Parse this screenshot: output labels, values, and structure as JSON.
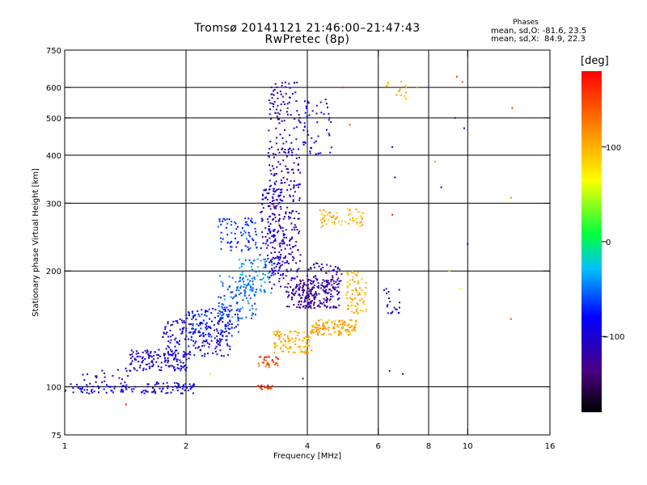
{
  "chart_data": {
    "type": "scatter",
    "title": "Tromsø 20141121 21:46:00–21:47:43",
    "subtitle": "RwPretec (8p)",
    "xlabel": "Frequency [MHz]",
    "ylabel": "Stationary phase Virtual Height [km]",
    "x_scale": "log",
    "y_scale": "log",
    "xlim": [
      1,
      16
    ],
    "ylim": [
      75,
      750
    ],
    "x_ticks": [
      1,
      2,
      4,
      6,
      8,
      10,
      16
    ],
    "y_ticks": [
      75,
      100,
      200,
      300,
      400,
      500,
      600,
      750
    ],
    "x_gridlines": [
      2,
      4,
      6,
      8,
      10
    ],
    "y_gridlines": [
      100,
      200,
      300,
      400,
      500,
      600
    ],
    "grid": true,
    "phases": {
      "title": "Phases",
      "o_line": "mean, sd,O: -81.6, 23.5",
      "x_line": "mean, sd,X:  84.9, 22.3"
    },
    "colorbar": {
      "label": "[deg]",
      "ticks": [
        -100,
        0,
        100
      ],
      "range": [
        -180,
        180
      ],
      "colormap": "rainbow (black → purple → blue → cyan → green → yellow → orange → red)"
    },
    "clusters": [
      {
        "f": [
          1.0,
          1.5
        ],
        "h": [
          96,
          102
        ],
        "phase": -95,
        "n": 60
      },
      {
        "f": [
          1.55,
          2.1
        ],
        "h": [
          96,
          103
        ],
        "phase": -95,
        "n": 70
      },
      {
        "f": [
          1.1,
          1.45
        ],
        "h": [
          102,
          112
        ],
        "phase": -100,
        "n": 20
      },
      {
        "f": [
          1.45,
          2.05
        ],
        "h": [
          110,
          125
        ],
        "phase": -100,
        "n": 140
      },
      {
        "f": [
          1.75,
          2.6
        ],
        "h": [
          120,
          150
        ],
        "phase": -95,
        "n": 160
      },
      {
        "f": [
          2.0,
          2.7
        ],
        "h": [
          135,
          160
        ],
        "phase": -75,
        "n": 110
      },
      {
        "f": [
          2.4,
          3.0
        ],
        "h": [
          150,
          195
        ],
        "phase": -55,
        "n": 110
      },
      {
        "f": [
          2.7,
          3.3
        ],
        "h": [
          175,
          215
        ],
        "phase": -45,
        "n": 70
      },
      {
        "f": [
          2.4,
          3.0
        ],
        "h": [
          225,
          275
        ],
        "phase": -70,
        "n": 80
      },
      {
        "f": [
          3.05,
          3.45
        ],
        "h": [
          195,
          330
        ],
        "phase": -100,
        "n": 110
      },
      {
        "f": [
          3.2,
          3.85
        ],
        "h": [
          170,
          620
        ],
        "phase": -110,
        "n": 350
      },
      {
        "f": [
          3.8,
          4.8
        ],
        "h": [
          160,
          190
        ],
        "phase": -120,
        "n": 150
      },
      {
        "f": [
          4.0,
          4.9
        ],
        "h": [
          180,
          210
        ],
        "phase": -115,
        "n": 60
      },
      {
        "f": [
          3.55,
          4.2
        ],
        "h": [
          160,
          185
        ],
        "phase": -140,
        "n": 50
      },
      {
        "f": [
          3.3,
          4.1
        ],
        "h": [
          122,
          140
        ],
        "phase": 100,
        "n": 100
      },
      {
        "f": [
          4.1,
          5.3
        ],
        "h": [
          136,
          150
        ],
        "phase": 105,
        "n": 120
      },
      {
        "f": [
          4.3,
          5.5
        ],
        "h": [
          260,
          290
        ],
        "phase": 100,
        "n": 60
      },
      {
        "f": [
          5.0,
          5.6
        ],
        "h": [
          155,
          200
        ],
        "phase": 100,
        "n": 80
      },
      {
        "f": [
          3.0,
          3.4
        ],
        "h": [
          112,
          120
        ],
        "phase": 150,
        "n": 30
      },
      {
        "f": [
          3.0,
          3.3
        ],
        "h": [
          98,
          101
        ],
        "phase": 150,
        "n": 20
      },
      {
        "f": [
          3.9,
          4.6
        ],
        "h": [
          400,
          560
        ],
        "phase": -100,
        "n": 50
      },
      {
        "f": [
          6.2,
          6.8
        ],
        "h": [
          155,
          180
        ],
        "phase": -110,
        "n": 20
      },
      {
        "f": [
          6.1,
          7.1
        ],
        "h": [
          560,
          650
        ],
        "phase": 110,
        "n": 15
      }
    ],
    "scattered_points": [
      {
        "f": 6.5,
        "h": 420,
        "phase": -100
      },
      {
        "f": 6.6,
        "h": 350,
        "phase": -90
      },
      {
        "f": 6.5,
        "h": 280,
        "phase": 170
      },
      {
        "f": 6.4,
        "h": 110,
        "phase": -120
      },
      {
        "f": 6.9,
        "h": 108,
        "phase": -110
      },
      {
        "f": 4.9,
        "h": 600,
        "phase": 160
      },
      {
        "f": 5.1,
        "h": 480,
        "phase": 150
      },
      {
        "f": 7.5,
        "h": 600,
        "phase": 110
      },
      {
        "f": 8.3,
        "h": 385,
        "phase": 110
      },
      {
        "f": 8.6,
        "h": 330,
        "phase": -80
      },
      {
        "f": 9.3,
        "h": 500,
        "phase": -100
      },
      {
        "f": 9.8,
        "h": 470,
        "phase": -110
      },
      {
        "f": 9.4,
        "h": 640,
        "phase": 170
      },
      {
        "f": 9.7,
        "h": 620,
        "phase": 150
      },
      {
        "f": 10.0,
        "h": 235,
        "phase": -110
      },
      {
        "f": 9.6,
        "h": 180,
        "phase": 60
      },
      {
        "f": 12.9,
        "h": 530,
        "phase": 160
      },
      {
        "f": 12.8,
        "h": 310,
        "phase": 120
      },
      {
        "f": 12.8,
        "h": 150,
        "phase": 150
      },
      {
        "f": 9.0,
        "h": 200,
        "phase": 40
      },
      {
        "f": 1.42,
        "h": 90,
        "phase": 165
      },
      {
        "f": 3.9,
        "h": 105,
        "phase": -140
      },
      {
        "f": 2.0,
        "h": 140,
        "phase": -70
      },
      {
        "f": 2.3,
        "h": 108,
        "phase": 80
      },
      {
        "f": 3.3,
        "h": 295,
        "phase": 170
      },
      {
        "f": 3.4,
        "h": 265,
        "phase": 100
      }
    ]
  }
}
